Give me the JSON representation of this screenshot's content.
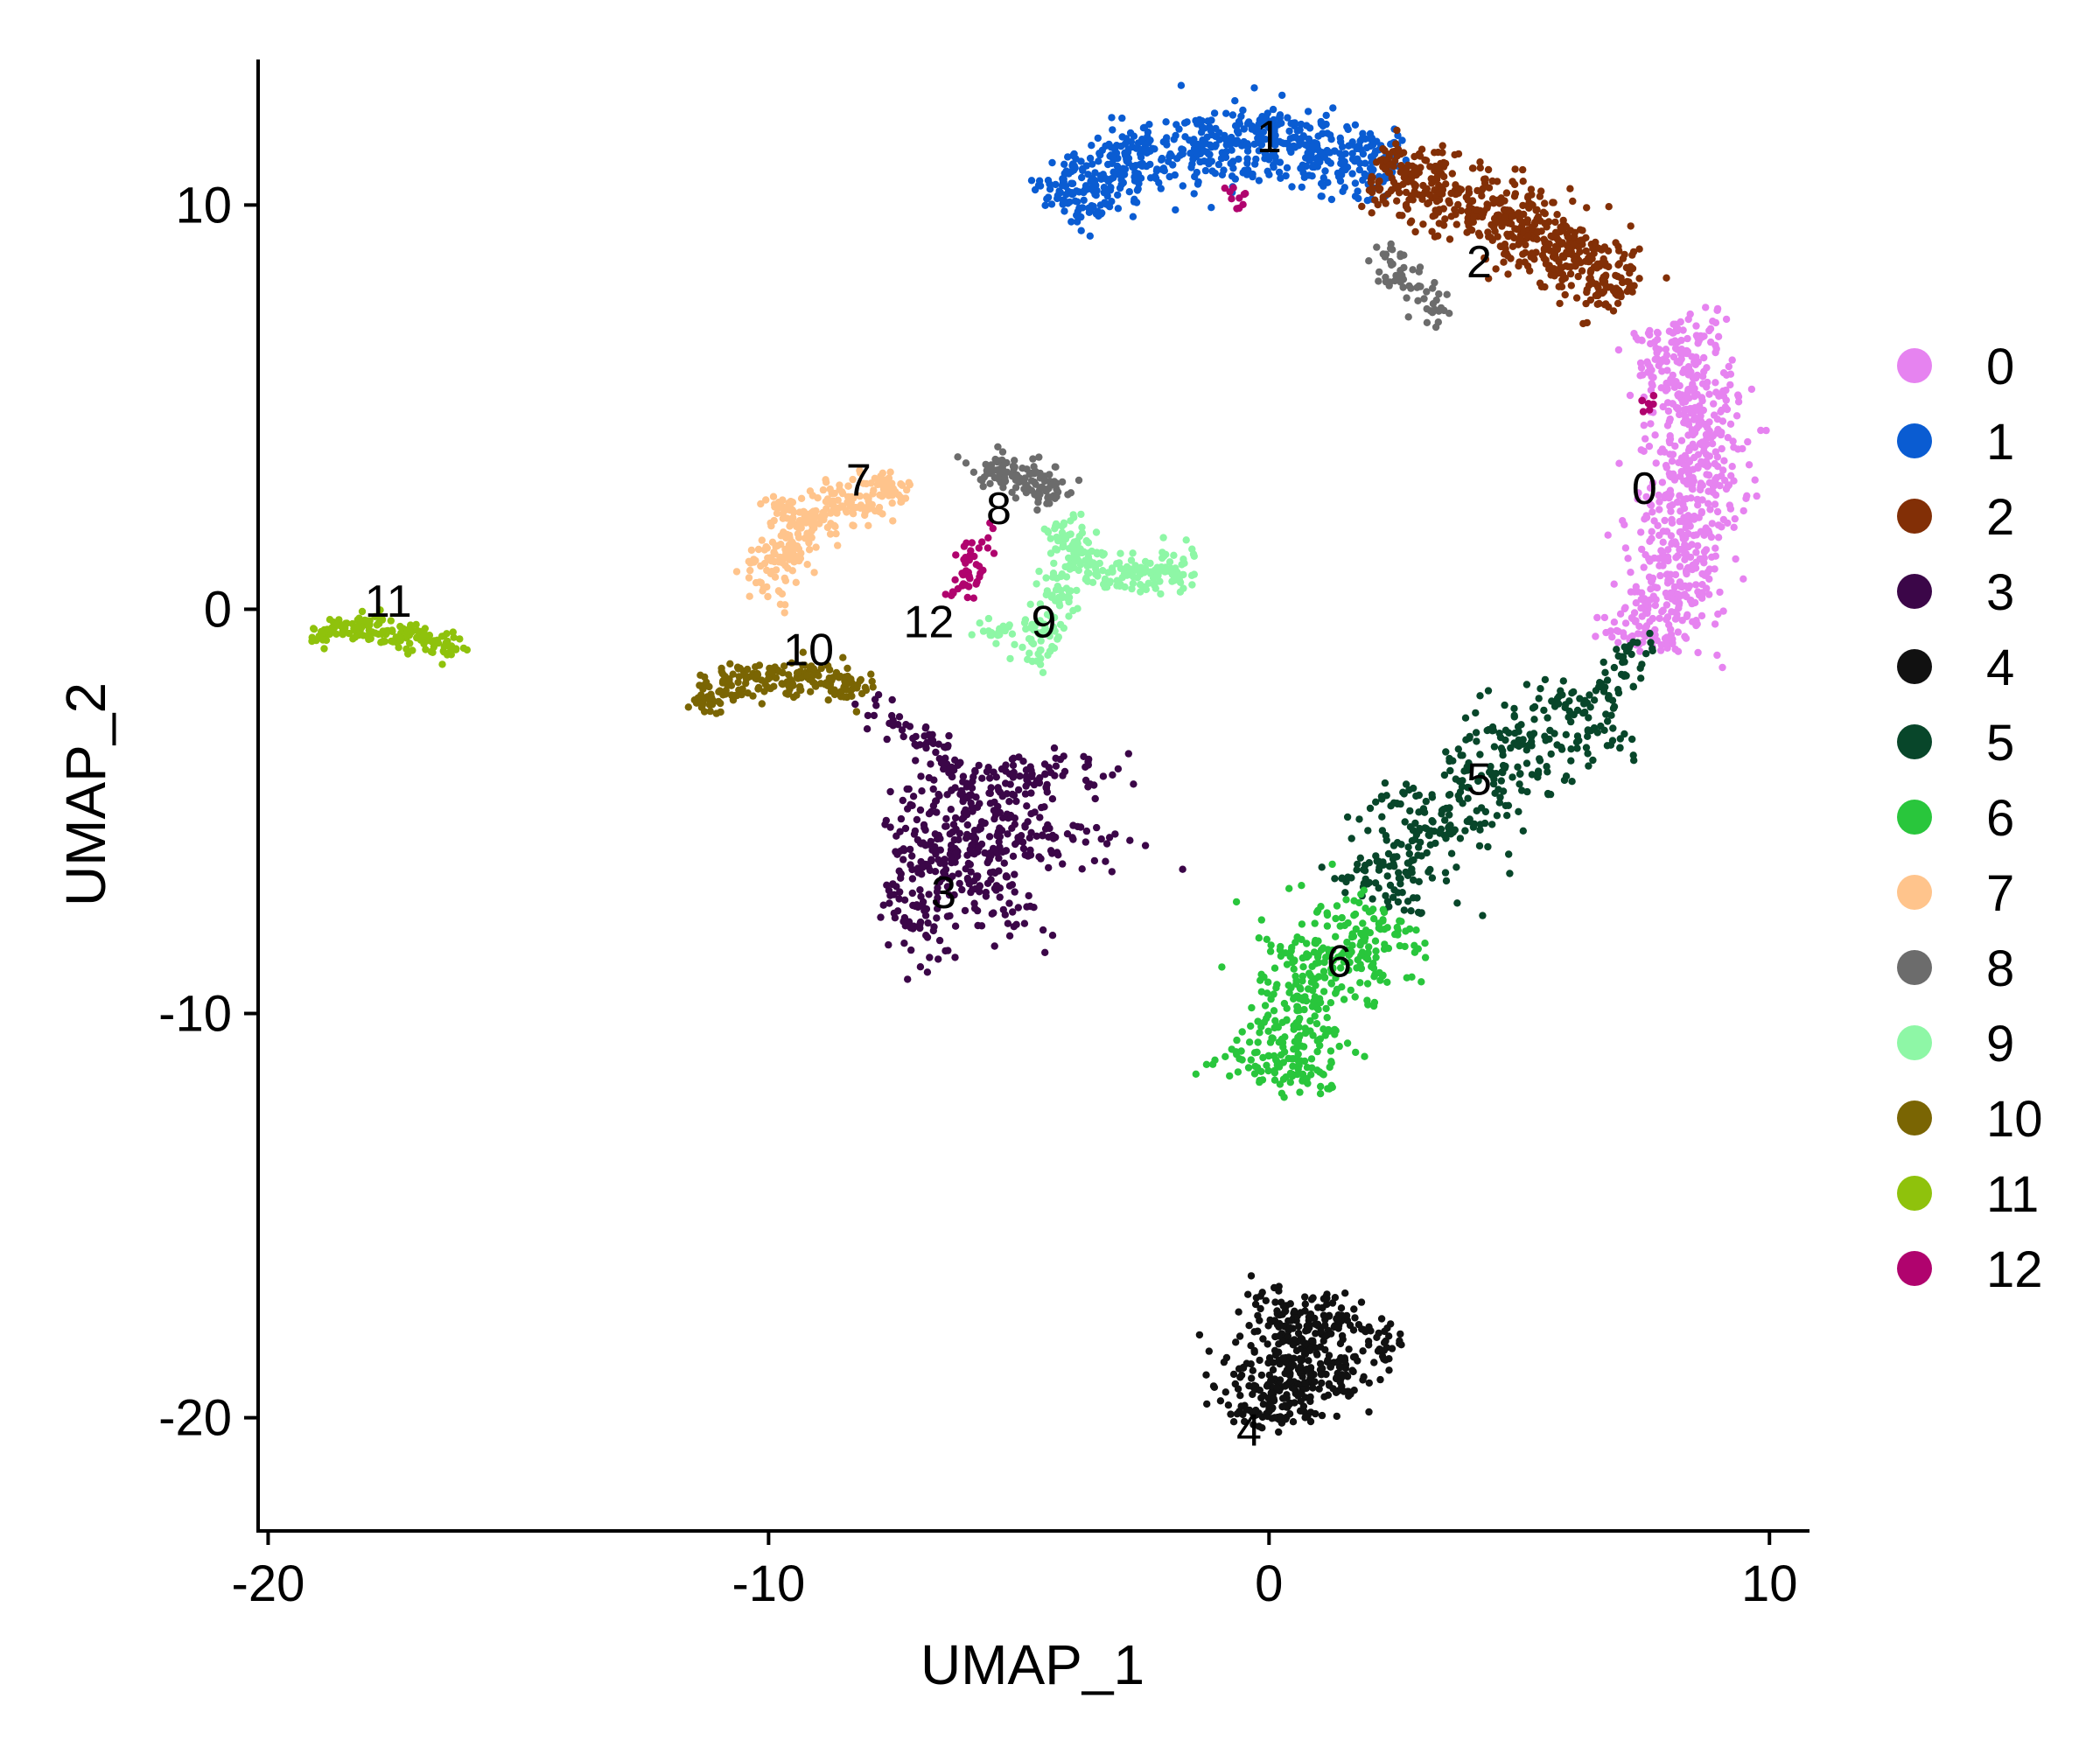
{
  "chart_data": {
    "type": "scatter",
    "title": "",
    "xlabel": "UMAP_1",
    "ylabel": "UMAP_2",
    "xlim": [
      -20.2,
      10.8
    ],
    "ylim": [
      -22.8,
      13.6
    ],
    "xticks": [
      -20,
      -10,
      0,
      10
    ],
    "yticks": [
      -20,
      -10,
      0,
      10
    ],
    "xtick_labels": [
      "-20",
      "-10",
      "0",
      "10"
    ],
    "ytick_labels": [
      "-20",
      "-10",
      "0",
      "10"
    ],
    "grid": false,
    "legend_position": "right",
    "legend": [
      {
        "name": "0",
        "color": "#E683F0"
      },
      {
        "name": "1",
        "color": "#0A5CD2"
      },
      {
        "name": "2",
        "color": "#822F06"
      },
      {
        "name": "3",
        "color": "#3B0648"
      },
      {
        "name": "4",
        "color": "#111111"
      },
      {
        "name": "5",
        "color": "#08462A"
      },
      {
        "name": "6",
        "color": "#29C63C"
      },
      {
        "name": "7",
        "color": "#FFC48C"
      },
      {
        "name": "8",
        "color": "#6C6C6C"
      },
      {
        "name": "9",
        "color": "#8EF7A6"
      },
      {
        "name": "10",
        "color": "#7A6503"
      },
      {
        "name": "11",
        "color": "#8FC20C"
      },
      {
        "name": "12",
        "color": "#B0036E"
      }
    ],
    "cluster_labels": [
      {
        "text": "0",
        "x": 7.5,
        "y": 3.0
      },
      {
        "text": "1",
        "x": 0.0,
        "y": 11.7
      },
      {
        "text": "2",
        "x": 4.2,
        "y": 8.6
      },
      {
        "text": "3",
        "x": -6.5,
        "y": -7.0
      },
      {
        "text": "4",
        "x": -0.4,
        "y": -20.3
      },
      {
        "text": "5",
        "x": 4.2,
        "y": -4.2
      },
      {
        "text": "6",
        "x": 1.4,
        "y": -8.7
      },
      {
        "text": "7",
        "x": -8.2,
        "y": 3.2
      },
      {
        "text": "8",
        "x": -5.4,
        "y": 2.5
      },
      {
        "text": "9",
        "x": -4.5,
        "y": -0.3
      },
      {
        "text": "10",
        "x": -9.2,
        "y": -1.0
      },
      {
        "text": "11",
        "x": -17.6,
        "y": 0.2
      },
      {
        "text": "12",
        "x": -6.8,
        "y": -0.3
      }
    ],
    "clusters": [
      {
        "name": "0",
        "color": "#E683F0",
        "n": 700,
        "shape": "path",
        "width": 1.1,
        "path": [
          [
            7.6,
            -1.0
          ],
          [
            8.0,
            0.5
          ],
          [
            8.3,
            2.0
          ],
          [
            8.5,
            3.5
          ],
          [
            8.5,
            5.0
          ],
          [
            8.3,
            6.0
          ],
          [
            7.8,
            7.0
          ]
        ]
      },
      {
        "name": "1",
        "color": "#0A5CD2",
        "n": 650,
        "shape": "path",
        "width": 1.0,
        "path": [
          [
            -4.2,
            10.0
          ],
          [
            -3.3,
            10.8
          ],
          [
            -2.2,
            11.3
          ],
          [
            -1.0,
            11.5
          ],
          [
            0.3,
            11.5
          ],
          [
            1.6,
            11.2
          ],
          [
            2.5,
            10.8
          ]
        ]
      },
      {
        "name": "2",
        "color": "#822F06",
        "n": 600,
        "shape": "path",
        "width": 1.0,
        "path": [
          [
            2.1,
            10.9
          ],
          [
            3.2,
            10.5
          ],
          [
            4.3,
            9.9
          ],
          [
            5.3,
            9.3
          ],
          [
            6.2,
            8.7
          ],
          [
            7.1,
            7.7
          ]
        ]
      },
      {
        "name": "3",
        "color": "#3B0648",
        "n": 500,
        "shape": "path",
        "width": 2.2,
        "path": [
          [
            -5.2,
            -3.8
          ],
          [
            -5.0,
            -5.0
          ],
          [
            -5.3,
            -6.2
          ],
          [
            -6.3,
            -6.8
          ],
          [
            -7.6,
            -6.7
          ]
        ]
      },
      {
        "name": "3",
        "color": "#3B0648",
        "n": 60,
        "shape": "path",
        "width": 0.3,
        "path": [
          [
            -8.0,
            -2.3
          ],
          [
            -6.8,
            -3.2
          ],
          [
            -6.0,
            -4.2
          ]
        ]
      },
      {
        "name": "4",
        "color": "#111111",
        "n": 380,
        "shape": "path",
        "width": 1.4,
        "path": [
          [
            -0.1,
            -20.2
          ],
          [
            0.1,
            -19.5
          ],
          [
            0.6,
            -18.5
          ],
          [
            1.1,
            -17.0
          ]
        ]
      },
      {
        "name": "4",
        "color": "#111111",
        "n": 80,
        "shape": "path",
        "width": 0.5,
        "path": [
          [
            0.5,
            -19.5
          ],
          [
            1.4,
            -19.0
          ],
          [
            2.6,
            -18.0
          ]
        ]
      },
      {
        "name": "5",
        "color": "#08462A",
        "n": 380,
        "shape": "path",
        "width": 1.4,
        "path": [
          [
            2.2,
            -7.2
          ],
          [
            3.0,
            -5.6
          ],
          [
            3.8,
            -4.3
          ],
          [
            5.3,
            -3.6
          ],
          [
            6.6,
            -2.5
          ]
        ]
      },
      {
        "name": "5",
        "color": "#08462A",
        "n": 50,
        "shape": "path",
        "width": 0.35,
        "path": [
          [
            6.6,
            -2.5
          ],
          [
            7.0,
            -1.4
          ],
          [
            7.5,
            -0.6
          ]
        ]
      },
      {
        "name": "6",
        "color": "#29C63C",
        "n": 400,
        "shape": "path",
        "width": 1.3,
        "path": [
          [
            0.1,
            -11.8
          ],
          [
            0.4,
            -10.4
          ],
          [
            0.8,
            -9.3
          ],
          [
            1.5,
            -8.4
          ],
          [
            2.5,
            -7.6
          ]
        ]
      },
      {
        "name": "7",
        "color": "#FFC48C",
        "n": 260,
        "shape": "path",
        "width": 0.6,
        "path": [
          [
            -10.3,
            0.5
          ],
          [
            -9.7,
            0.9
          ],
          [
            -9.6,
            1.7
          ],
          [
            -9.0,
            2.5
          ],
          [
            -8.1,
            3.0
          ],
          [
            -7.2,
            2.7
          ]
        ]
      },
      {
        "name": "7",
        "color": "#FFC48C",
        "n": 30,
        "shape": "path",
        "width": 0.3,
        "path": [
          [
            -10.0,
            2.7
          ],
          [
            -9.3,
            2.3
          ]
        ]
      },
      {
        "name": "8",
        "color": "#6C6C6C",
        "n": 120,
        "shape": "path",
        "width": 0.45,
        "path": [
          [
            -5.9,
            3.3
          ],
          [
            -5.2,
            3.5
          ],
          [
            -4.5,
            3.2
          ],
          [
            -4.2,
            2.7
          ]
        ]
      },
      {
        "name": "8",
        "color": "#6C6C6C",
        "n": 60,
        "shape": "path",
        "width": 0.45,
        "path": [
          [
            2.4,
            8.9
          ],
          [
            2.5,
            8.2
          ],
          [
            3.0,
            7.7
          ],
          [
            3.6,
            7.3
          ]
        ]
      },
      {
        "name": "9",
        "color": "#8EF7A6",
        "n": 200,
        "shape": "path",
        "width": 0.5,
        "path": [
          [
            -4.2,
            2.2
          ],
          [
            -3.9,
            1.2
          ],
          [
            -3.1,
            0.8
          ],
          [
            -2.2,
            1.0
          ],
          [
            -1.5,
            1.0
          ]
        ]
      },
      {
        "name": "9",
        "color": "#8EF7A6",
        "n": 80,
        "shape": "path",
        "width": 0.4,
        "path": [
          [
            -4.2,
            1.0
          ],
          [
            -4.3,
            0.0
          ],
          [
            -4.5,
            -0.8
          ],
          [
            -4.6,
            -1.4
          ]
        ]
      },
      {
        "name": "9",
        "color": "#8EF7A6",
        "n": 25,
        "shape": "path",
        "width": 0.3,
        "path": [
          [
            -5.7,
            -0.8
          ],
          [
            -4.7,
            -0.4
          ]
        ]
      },
      {
        "name": "10",
        "color": "#7A6503",
        "n": 220,
        "shape": "path",
        "width": 0.45,
        "path": [
          [
            -11.3,
            -2.5
          ],
          [
            -11.0,
            -1.8
          ],
          [
            -10.0,
            -1.7
          ],
          [
            -9.0,
            -1.8
          ],
          [
            -8.0,
            -2.0
          ]
        ]
      },
      {
        "name": "11",
        "color": "#8FC20C",
        "n": 180,
        "shape": "path",
        "width": 0.3,
        "path": [
          [
            -19.0,
            -0.6
          ],
          [
            -18.2,
            -0.4
          ],
          [
            -17.0,
            -0.7
          ],
          [
            -16.2,
            -1.0
          ]
        ]
      },
      {
        "name": "12",
        "color": "#B0036E",
        "n": 45,
        "shape": "path",
        "width": 0.3,
        "path": [
          [
            -6.2,
            0.2
          ],
          [
            -6.0,
            1.2
          ],
          [
            -5.6,
            1.9
          ]
        ]
      },
      {
        "name": "12",
        "color": "#B0036E",
        "n": 10,
        "shape": "path",
        "width": 0.3,
        "path": [
          [
            -0.8,
            10.1
          ],
          [
            -0.6,
            10.3
          ]
        ]
      },
      {
        "name": "12",
        "color": "#B0036E",
        "n": 8,
        "shape": "path",
        "width": 0.25,
        "path": [
          [
            7.5,
            5.3
          ],
          [
            7.6,
            5.0
          ]
        ]
      }
    ]
  }
}
